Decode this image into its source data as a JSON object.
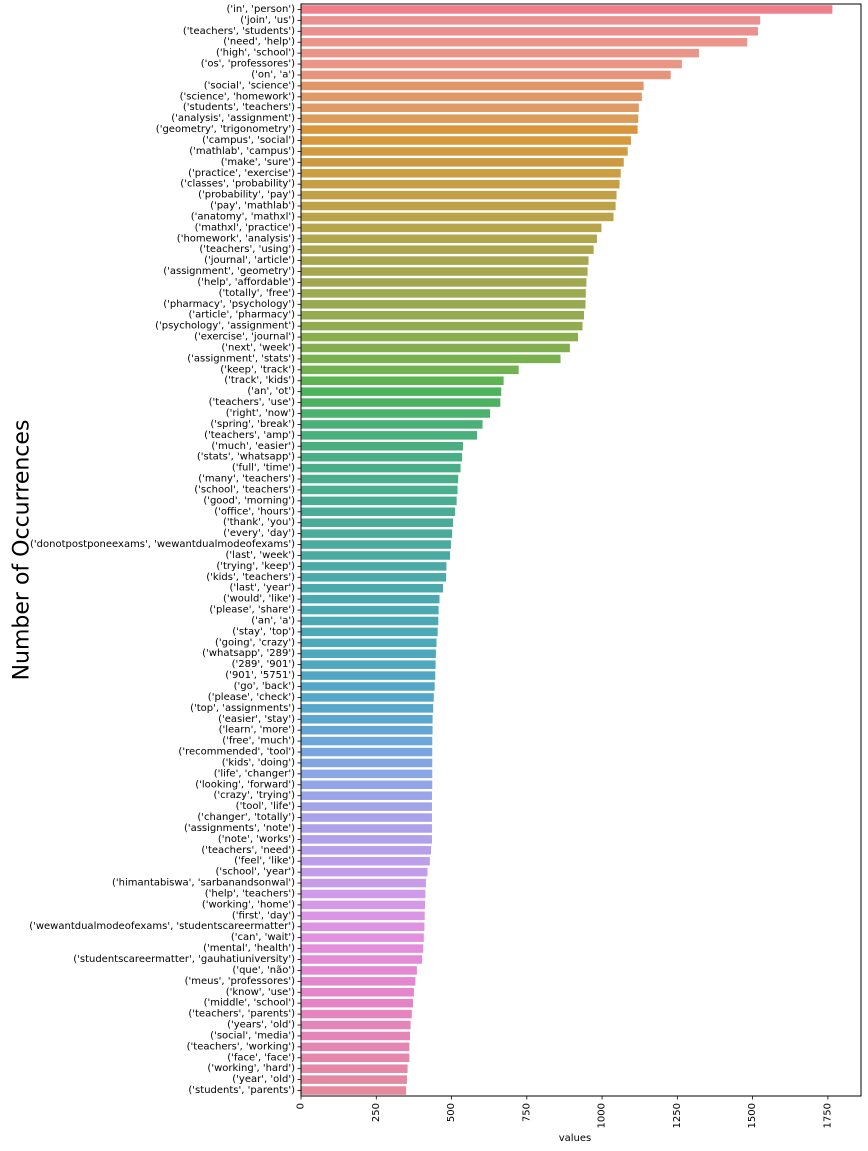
{
  "chart_data": {
    "type": "bar",
    "orientation": "horizontal",
    "xlabel": "values",
    "ylabel": "Number of Occurrences",
    "xlim": [
      0,
      1860
    ],
    "xticks": [
      "0",
      "250",
      "500",
      "750",
      "1000",
      "1250",
      "1500",
      "1750"
    ],
    "xtick_values": [
      0,
      250,
      500,
      750,
      1000,
      1250,
      1500,
      1750
    ],
    "grid": false,
    "legend": "none",
    "categories": [
      "('in', 'person')",
      "('join', 'us')",
      "('teachers', 'students')",
      "('need', 'help')",
      "('high', 'school')",
      "('os', 'professores')",
      "('on', 'a')",
      "('social', 'science')",
      "('science', 'homework')",
      "('students', 'teachers')",
      "('analysis', 'assignment')",
      "('geometry', 'trigonometry')",
      "('campus', 'social')",
      "('mathlab', 'campus')",
      "('make', 'sure')",
      "('practice', 'exercise')",
      "('classes', 'probability')",
      "('probability', 'pay')",
      "('pay', 'mathlab')",
      "('anatomy', 'mathxl')",
      "('mathxl', 'practice')",
      "('homework', 'analysis')",
      "('teachers', 'using')",
      "('journal', 'article')",
      "('assignment', 'geometry')",
      "('help', 'affordable')",
      "('totally', 'free')",
      "('pharmacy', 'psychology')",
      "('article', 'pharmacy')",
      "('psychology', 'assignment')",
      "('exercise', 'journal')",
      "('next', 'week')",
      "('assignment', 'stats')",
      "('keep', 'track')",
      "('track', 'kids')",
      "('an', 'ot')",
      "('teachers', 'use')",
      "('right', 'now')",
      "('spring', 'break')",
      "('teachers', 'amp')",
      "('much', 'easier')",
      "('stats', 'whatsapp')",
      "('full', 'time')",
      "('many', 'teachers')",
      "('school', 'teachers')",
      "('good', 'morning')",
      "('office', 'hours')",
      "('thank', 'you')",
      "('every', 'day')",
      "('donotpostponeexams', 'wewantdualmodeofexams')",
      "('last', 'week')",
      "('trying', 'keep')",
      "('kids', 'teachers')",
      "('last', 'year')",
      "('would', 'like')",
      "('please', 'share')",
      "('an', 'a')",
      "('stay', 'top')",
      "('going', 'crazy')",
      "('whatsapp', '289')",
      "('289', '901')",
      "('901', '5751')",
      "('go', 'back')",
      "('please', 'check')",
      "('top', 'assignments')",
      "('easier', 'stay')",
      "('learn', 'more')",
      "('free', 'much')",
      "('recommended', 'tool')",
      "('kids', 'doing')",
      "('life', 'changer')",
      "('looking', 'forward')",
      "('crazy', 'trying')",
      "('tool', 'life')",
      "('changer', 'totally')",
      "('assignments', 'note')",
      "('note', 'works')",
      "('teachers', 'need')",
      "('feel', 'like')",
      "('school', 'year')",
      "('himantabiswa', 'sarbanandsonwal')",
      "('help', 'teachers')",
      "('working', 'home')",
      "('first', 'day')",
      "('wewantdualmodeofexams', 'studentscareermatter')",
      "('can', 'wait')",
      "('mental', 'health')",
      "('studentscareermatter', 'gauhatiuniversity')",
      "('que', 'não')",
      "('meus', 'professores')",
      "('know', 'use')",
      "('middle', 'school')",
      "('teachers', 'parents')",
      "('years', 'old')",
      "('social', 'media')",
      "('teachers', 'working')",
      "('face', 'face')",
      "('working', 'hard')",
      "('year', 'old')",
      "('students', 'parents')"
    ],
    "values": [
      1765,
      1525,
      1518,
      1482,
      1322,
      1265,
      1228,
      1138,
      1132,
      1122,
      1120,
      1118,
      1096,
      1085,
      1072,
      1062,
      1058,
      1048,
      1045,
      1038,
      998,
      983,
      972,
      955,
      952,
      948,
      946,
      945,
      940,
      935,
      920,
      893,
      862,
      723,
      673,
      665,
      662,
      628,
      603,
      585,
      538,
      535,
      530,
      522,
      520,
      517,
      512,
      505,
      502,
      498,
      495,
      483,
      482,
      472,
      460,
      457,
      456,
      454,
      450,
      448,
      447,
      446,
      444,
      441,
      439,
      437,
      437,
      436,
      436,
      436,
      436,
      436,
      435,
      435,
      435,
      435,
      435,
      432,
      428,
      420,
      415,
      413,
      412,
      411,
      410,
      408,
      406,
      402,
      385,
      380,
      375,
      372,
      368,
      364,
      362,
      360,
      360,
      354,
      352,
      349
    ],
    "colors": [
      "#f07f8c",
      "#ea9291",
      "#ea9190",
      "#eb958b",
      "#e9958a",
      "#e99687",
      "#e8947c",
      "#e09668",
      "#e19866",
      "#e09a63",
      "#db9c5a",
      "#d9953b",
      "#d8983c",
      "#d29a41",
      "#cd9a42",
      "#cb9e43",
      "#c69f44",
      "#c2a047",
      "#bea248",
      "#bba448",
      "#b7a54b",
      "#b0a64c",
      "#aca74e",
      "#a7a74e",
      "#a6a850",
      "#a0a950",
      "#9caa50",
      "#98aa51",
      "#94ac4f",
      "#90ac4e",
      "#8aae4e",
      "#82ae4f",
      "#7ab14f",
      "#72b250",
      "#5db552",
      "#4cb55c",
      "#4cb262",
      "#4bb26e",
      "#4ab075",
      "#4ab07c",
      "#4aae80",
      "#49ae85",
      "#49ad89",
      "#4aae8c",
      "#4aae8f",
      "#4aad93",
      "#4aac96",
      "#4aab99",
      "#4aab9c",
      "#4aaba0",
      "#4aaba3",
      "#4aaba6",
      "#4aaaa9",
      "#4aa9ab",
      "#4aa9ae",
      "#4ba9b1",
      "#4ba9b4",
      "#4ca9b7",
      "#4da8ba",
      "#4ea8bd",
      "#50a8c0",
      "#51a7c3",
      "#53a7c6",
      "#55a7c9",
      "#57a7cc",
      "#5aa7cf",
      "#63a6d6",
      "#6ca6db",
      "#7aa6df",
      "#82a6e2",
      "#8aa6e4",
      "#93a5e6",
      "#9ba4e8",
      "#a2a3e9",
      "#a9a2ea",
      "#aea1ea",
      "#b3a0ea",
      "#b89feb",
      "#bd9eeb",
      "#c39dea",
      "#c99ce9",
      "#cf9ae8",
      "#d498e6",
      "#d996e4",
      "#de93e2",
      "#e291df",
      "#e38edc",
      "#e38bd7",
      "#e489d3",
      "#e487cf",
      "#e585ca",
      "#e584c5",
      "#e584c0",
      "#e584bb",
      "#e584b6",
      "#e585b1",
      "#e586ac",
      "#e587a7",
      "#e588a2",
      "#e5899d"
    ]
  }
}
